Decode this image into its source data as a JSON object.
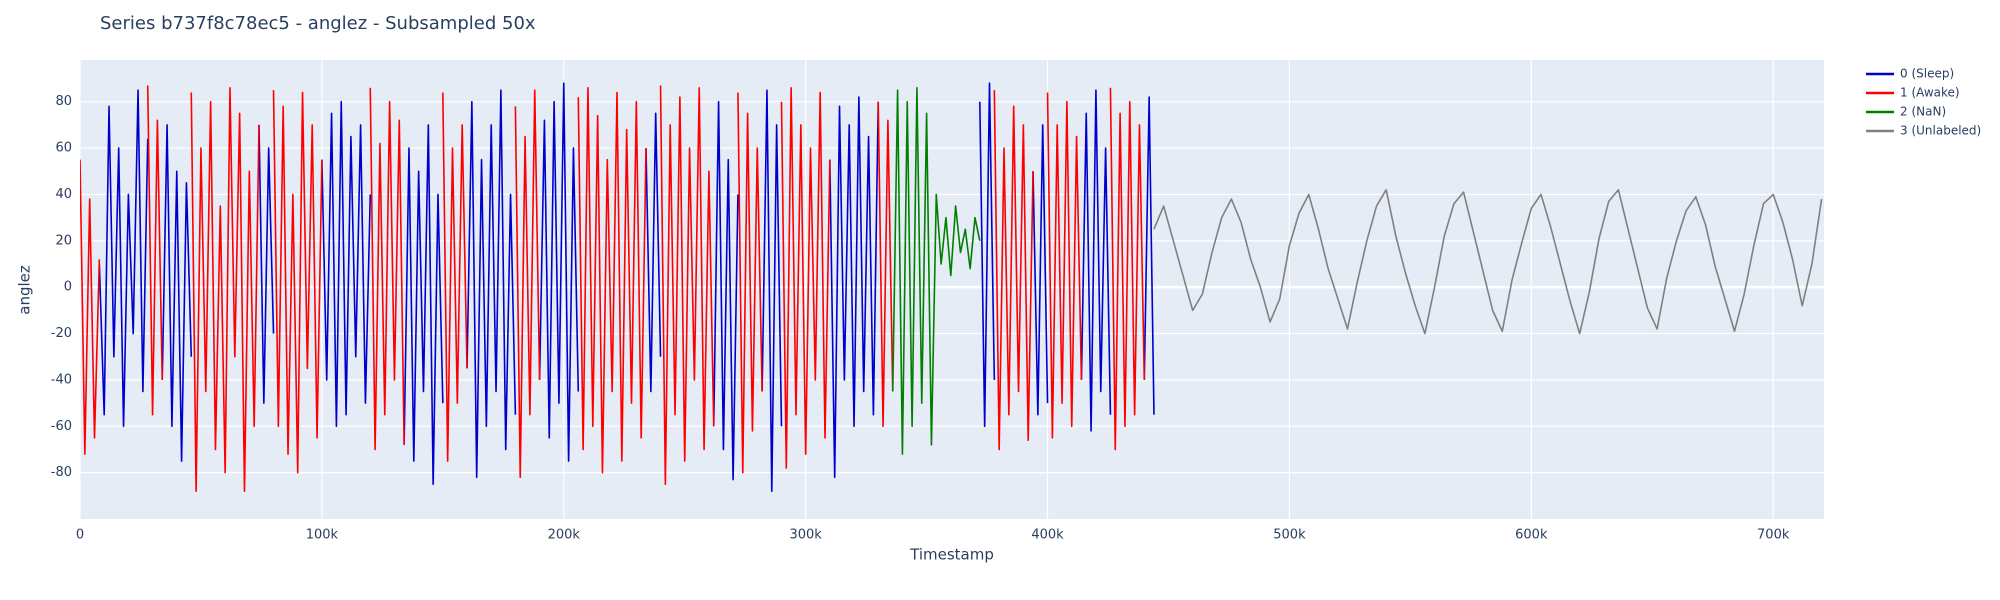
{
  "chart_data": {
    "type": "line",
    "title": "Series b737f8c78ec5 - anglez - Subsampled 50x",
    "x_label": "Timestamp",
    "y_label": "anglez",
    "xlim": [
      0,
      721000
    ],
    "ylim": [
      -100,
      98
    ],
    "xticks": [
      0,
      {
        "value": 100000,
        "label": "100k"
      },
      {
        "value": 200000,
        "label": "200k"
      },
      {
        "value": 300000,
        "label": "300k"
      },
      {
        "value": 400000,
        "label": "400k"
      },
      {
        "value": 500000,
        "label": "500k"
      },
      {
        "value": 600000,
        "label": "600k"
      },
      {
        "value": 700000,
        "label": "700k"
      }
    ],
    "yticks": [
      -80,
      -60,
      -40,
      -20,
      0,
      20,
      40,
      60,
      80
    ],
    "grid": true,
    "legend": "right",
    "series": [
      {
        "name": "0 (Sleep)",
        "color": "#0000cd",
        "x": [
          8000,
          10000,
          12000,
          14000,
          16000,
          18000,
          20000,
          22000,
          24000,
          26000,
          28000,
          null,
          34000,
          36000,
          38000,
          40000,
          42000,
          44000,
          46000,
          null,
          74000,
          76000,
          78000,
          80000,
          null,
          100000,
          102000,
          104000,
          106000,
          108000,
          110000,
          112000,
          114000,
          116000,
          118000,
          120000,
          null,
          134000,
          136000,
          138000,
          140000,
          142000,
          144000,
          146000,
          148000,
          150000,
          null,
          160000,
          162000,
          164000,
          166000,
          168000,
          170000,
          172000,
          174000,
          176000,
          178000,
          180000,
          null,
          190000,
          192000,
          194000,
          196000,
          198000,
          200000,
          202000,
          204000,
          206000,
          null,
          234000,
          236000,
          238000,
          240000,
          null,
          262000,
          264000,
          266000,
          268000,
          270000,
          272000,
          null,
          282000,
          284000,
          286000,
          288000,
          290000,
          null,
          310000,
          312000,
          314000,
          316000,
          318000,
          320000,
          322000,
          324000,
          326000,
          328000,
          330000,
          null,
          372000,
          374000,
          376000,
          378000,
          null,
          394000,
          396000,
          398000,
          400000,
          null,
          414000,
          416000,
          418000,
          420000,
          422000,
          424000,
          426000,
          null,
          440000,
          442000,
          444000
        ],
        "values": [
          10,
          -55,
          78,
          -30,
          60,
          -60,
          40,
          -20,
          85,
          -45,
          64,
          null,
          -40,
          70,
          -60,
          50,
          -75,
          45,
          -30,
          null,
          70,
          -50,
          60,
          -20,
          null,
          55,
          -40,
          75,
          -60,
          80,
          -55,
          65,
          -30,
          70,
          -50,
          40,
          null,
          -68,
          60,
          -75,
          50,
          -45,
          70,
          -85,
          40,
          -50,
          null,
          -35,
          80,
          -82,
          55,
          -60,
          70,
          -45,
          85,
          -70,
          40,
          -55,
          null,
          -40,
          72,
          -65,
          80,
          -50,
          88,
          -75,
          60,
          -45,
          null,
          60,
          -45,
          75,
          -30,
          null,
          -60,
          80,
          -70,
          55,
          -83,
          40,
          null,
          -45,
          85,
          -88,
          70,
          -60,
          null,
          55,
          -82,
          78,
          -40,
          70,
          -60,
          82,
          -45,
          65,
          -55,
          80,
          null,
          80,
          -60,
          88,
          -40,
          null,
          50,
          -55,
          70,
          -50,
          null,
          -40,
          75,
          -62,
          85,
          -45,
          60,
          -55,
          null,
          -40,
          82,
          -55
        ]
      },
      {
        "name": "1 (Awake)",
        "color": "#ff0000",
        "x": [
          0,
          2000,
          4000,
          6000,
          8000,
          null,
          28000,
          30000,
          32000,
          34000,
          null,
          46000,
          48000,
          50000,
          52000,
          54000,
          56000,
          58000,
          60000,
          62000,
          64000,
          66000,
          68000,
          70000,
          72000,
          74000,
          null,
          80000,
          82000,
          84000,
          86000,
          88000,
          90000,
          92000,
          94000,
          96000,
          98000,
          100000,
          null,
          120000,
          122000,
          124000,
          126000,
          128000,
          130000,
          132000,
          134000,
          null,
          150000,
          152000,
          154000,
          156000,
          158000,
          160000,
          null,
          180000,
          182000,
          184000,
          186000,
          188000,
          190000,
          null,
          206000,
          208000,
          210000,
          212000,
          214000,
          216000,
          218000,
          220000,
          222000,
          224000,
          226000,
          228000,
          230000,
          232000,
          234000,
          null,
          240000,
          242000,
          244000,
          246000,
          248000,
          250000,
          252000,
          254000,
          256000,
          258000,
          260000,
          262000,
          null,
          272000,
          274000,
          276000,
          278000,
          280000,
          282000,
          null,
          290000,
          292000,
          294000,
          296000,
          298000,
          300000,
          302000,
          304000,
          306000,
          308000,
          310000,
          null,
          330000,
          332000,
          334000,
          336000,
          null,
          378000,
          380000,
          382000,
          384000,
          386000,
          388000,
          390000,
          392000,
          394000,
          null,
          400000,
          402000,
          404000,
          406000,
          408000,
          410000,
          412000,
          414000,
          null,
          426000,
          428000,
          430000,
          432000,
          434000,
          436000,
          438000,
          440000
        ],
        "values": [
          55,
          -72,
          38,
          -65,
          12,
          null,
          87,
          -55,
          72,
          -40,
          null,
          84,
          -88,
          60,
          -45,
          80,
          -70,
          35,
          -80,
          86,
          -30,
          75,
          -88,
          50,
          -60,
          70,
          null,
          85,
          -60,
          78,
          -72,
          40,
          -80,
          84,
          -35,
          70,
          -65,
          55,
          null,
          86,
          -70,
          62,
          -55,
          80,
          -40,
          72,
          -68,
          null,
          84,
          -75,
          60,
          -50,
          70,
          -35,
          null,
          78,
          -82,
          65,
          -55,
          85,
          -40,
          null,
          82,
          -70,
          86,
          -60,
          74,
          -80,
          55,
          -45,
          84,
          -75,
          68,
          -50,
          80,
          -65,
          60,
          null,
          87,
          -85,
          70,
          -55,
          82,
          -75,
          60,
          -40,
          86,
          -70,
          50,
          -60,
          null,
          84,
          -80,
          75,
          -62,
          60,
          -45,
          null,
          80,
          -78,
          86,
          -55,
          70,
          -72,
          60,
          -40,
          84,
          -65,
          55,
          null,
          80,
          -60,
          72,
          -45,
          null,
          85,
          -70,
          60,
          -55,
          78,
          -45,
          70,
          -66,
          50,
          null,
          84,
          -65,
          70,
          -50,
          80,
          -60,
          65,
          -40,
          null,
          86,
          -70,
          75,
          -60,
          80,
          -55,
          70,
          -40
        ]
      },
      {
        "name": "2 (NaN)",
        "color": "#008000",
        "x": [
          336000,
          338000,
          340000,
          342000,
          344000,
          346000,
          348000,
          350000,
          352000,
          354000,
          356000,
          358000,
          360000,
          362000,
          364000,
          366000,
          368000,
          370000,
          372000
        ],
        "values": [
          -45,
          85,
          -72,
          80,
          -60,
          86,
          -50,
          75,
          -68,
          40,
          10,
          30,
          5,
          35,
          15,
          25,
          8,
          30,
          20
        ]
      },
      {
        "name": "3 (Unlabeled)",
        "color": "#808080",
        "x": [
          444000,
          448000,
          452000,
          456000,
          460000,
          464000,
          468000,
          472000,
          476000,
          480000,
          484000,
          488000,
          492000,
          496000,
          500000,
          504000,
          508000,
          512000,
          516000,
          520000,
          524000,
          528000,
          532000,
          536000,
          540000,
          544000,
          548000,
          552000,
          556000,
          560000,
          564000,
          568000,
          572000,
          576000,
          580000,
          584000,
          588000,
          592000,
          596000,
          600000,
          604000,
          608000,
          612000,
          616000,
          620000,
          624000,
          628000,
          632000,
          636000,
          640000,
          644000,
          648000,
          652000,
          656000,
          660000,
          664000,
          668000,
          672000,
          676000,
          680000,
          684000,
          688000,
          692000,
          696000,
          700000,
          704000,
          708000,
          712000,
          716000,
          720000
        ],
        "values": [
          25,
          35,
          20,
          5,
          -10,
          -3,
          15,
          30,
          38,
          28,
          12,
          0,
          -15,
          -5,
          18,
          32,
          40,
          25,
          8,
          -5,
          -18,
          2,
          20,
          35,
          42,
          22,
          6,
          -8,
          -20,
          0,
          22,
          36,
          41,
          24,
          7,
          -10,
          -19,
          3,
          19,
          34,
          40,
          26,
          10,
          -6,
          -20,
          -2,
          21,
          37,
          42,
          25,
          8,
          -9,
          -18,
          4,
          20,
          33,
          39,
          27,
          9,
          -5,
          -19,
          -3,
          18,
          36,
          40,
          28,
          12,
          -8,
          10,
          38
        ]
      }
    ]
  }
}
